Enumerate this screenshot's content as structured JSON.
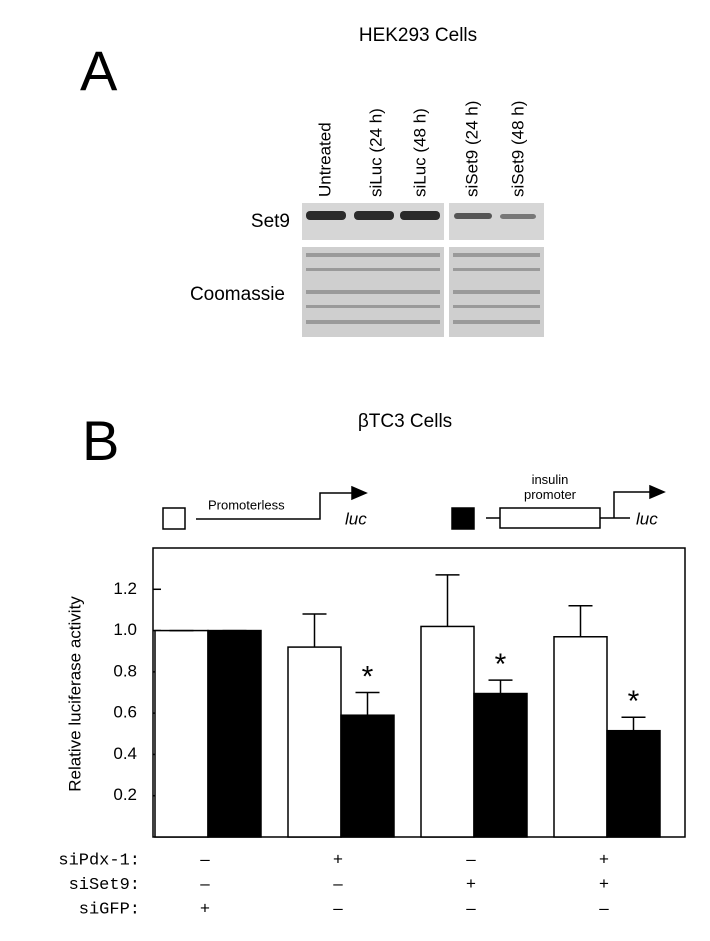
{
  "panel_a": {
    "label": "A",
    "title": "HEK293 Cells",
    "lanes": [
      "Untreated",
      "siLuc (24 h)",
      "siLuc (48 h)",
      "siSet9 (24 h)",
      "siSet9 (48 h)"
    ],
    "rows": [
      "Set9",
      "Coomassie"
    ]
  },
  "chart_data": {
    "type": "bar",
    "panel_label": "B",
    "title": "βTC3 Cells",
    "ylabel": "Relative luciferase activity",
    "gene_label": "luc",
    "categories": [
      null,
      null,
      null,
      null
    ],
    "series": [
      {
        "name": "Promoterless",
        "color": "#ffffff",
        "values": [
          1.0,
          0.92,
          1.02,
          0.97
        ],
        "errors": [
          0,
          0.16,
          0.25,
          0.15
        ]
      },
      {
        "name": "insulin promoter",
        "color": "#000000",
        "values": [
          1.0,
          0.59,
          0.695,
          0.515
        ],
        "errors": [
          0,
          0.11,
          0.065,
          0.065
        ],
        "markers": [
          null,
          "*",
          "*",
          "*"
        ]
      }
    ],
    "ylim": [
      0,
      1.4
    ],
    "yticks": [
      0.2,
      0.4,
      0.6,
      0.8,
      {
        "value": 1,
        "label": "1.0"
      },
      1.2
    ],
    "conditions": [
      {
        "label": "siPdx-1:",
        "values": [
          "–",
          "+",
          "–",
          "+"
        ]
      },
      {
        "label": "siSet9:",
        "values": [
          "–",
          "–",
          "+",
          "+"
        ]
      },
      {
        "label": "siGFP:",
        "values": [
          "+",
          "–",
          "–",
          "–"
        ]
      }
    ]
  }
}
